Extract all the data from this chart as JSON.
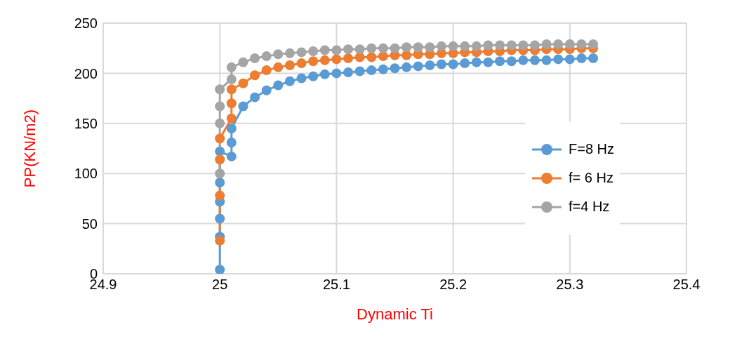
{
  "chart_data": {
    "type": "line",
    "xlabel": "Dynamic Ti",
    "ylabel": "PP(KN/m2)",
    "xlim": [
      24.9,
      25.4
    ],
    "xticks": [
      24.9,
      25,
      25.1,
      25.2,
      25.3,
      25.4
    ],
    "ylim": [
      0,
      250
    ],
    "yticks": [
      0,
      50,
      100,
      150,
      200,
      250
    ],
    "grid": true,
    "legend": "right",
    "marker": "circle",
    "line_style": "solid",
    "series": [
      {
        "name": "F=8 Hz",
        "color": "#5b9bd5",
        "x": [
          25,
          25,
          25,
          25,
          25,
          25,
          25.01,
          25.01,
          25.01,
          25.02,
          25.03,
          25.04,
          25.05,
          25.06,
          25.07,
          25.08,
          25.09,
          25.1,
          25.11,
          25.12,
          25.13,
          25.14,
          25.15,
          25.16,
          25.17,
          25.18,
          25.19,
          25.2,
          25.21,
          25.22,
          25.23,
          25.24,
          25.25,
          25.26,
          25.27,
          25.28,
          25.29,
          25.3,
          25.31,
          25.32
        ],
        "values": [
          4,
          37,
          55,
          72,
          91,
          122,
          117,
          131,
          145,
          167,
          176,
          183,
          188,
          192,
          195,
          197,
          199,
          200,
          201,
          202,
          203,
          204,
          205,
          206,
          207,
          208,
          209,
          209,
          210,
          211,
          211,
          212,
          212,
          213,
          213,
          213,
          214,
          214,
          215,
          215
        ]
      },
      {
        "name": "f= 6 Hz",
        "color": "#ed7d31",
        "x": [
          25,
          25,
          25,
          25,
          25.01,
          25.01,
          25.01,
          25.02,
          25.03,
          25.04,
          25.05,
          25.06,
          25.07,
          25.08,
          25.09,
          25.1,
          25.11,
          25.12,
          25.13,
          25.14,
          25.15,
          25.16,
          25.17,
          25.18,
          25.19,
          25.2,
          25.21,
          25.22,
          25.23,
          25.24,
          25.25,
          25.26,
          25.27,
          25.28,
          25.29,
          25.3,
          25.31,
          25.32
        ],
        "values": [
          33,
          78,
          114,
          135,
          155,
          170,
          184,
          190,
          198,
          203,
          206,
          208,
          210,
          212,
          213,
          214,
          215,
          216,
          216,
          217,
          218,
          218,
          219,
          219,
          220,
          220,
          221,
          221,
          222,
          222,
          223,
          223,
          223,
          224,
          224,
          224,
          225,
          225
        ]
      },
      {
        "name": "f=4 Hz",
        "color": "#a5a5a5",
        "x": [
          25,
          25,
          25,
          25,
          25.01,
          25.01,
          25.02,
          25.03,
          25.04,
          25.05,
          25.06,
          25.07,
          25.08,
          25.09,
          25.1,
          25.11,
          25.12,
          25.13,
          25.14,
          25.15,
          25.16,
          25.17,
          25.18,
          25.19,
          25.2,
          25.21,
          25.22,
          25.23,
          25.24,
          25.25,
          25.26,
          25.27,
          25.28,
          25.29,
          25.3,
          25.31,
          25.32
        ],
        "values": [
          100,
          150,
          167,
          184,
          194,
          206,
          211,
          215,
          217,
          219,
          220,
          221,
          222,
          223,
          223,
          224,
          224,
          225,
          225,
          225,
          226,
          226,
          226,
          227,
          227,
          227,
          227,
          228,
          228,
          228,
          228,
          228,
          229,
          229,
          229,
          229,
          229
        ]
      }
    ]
  }
}
